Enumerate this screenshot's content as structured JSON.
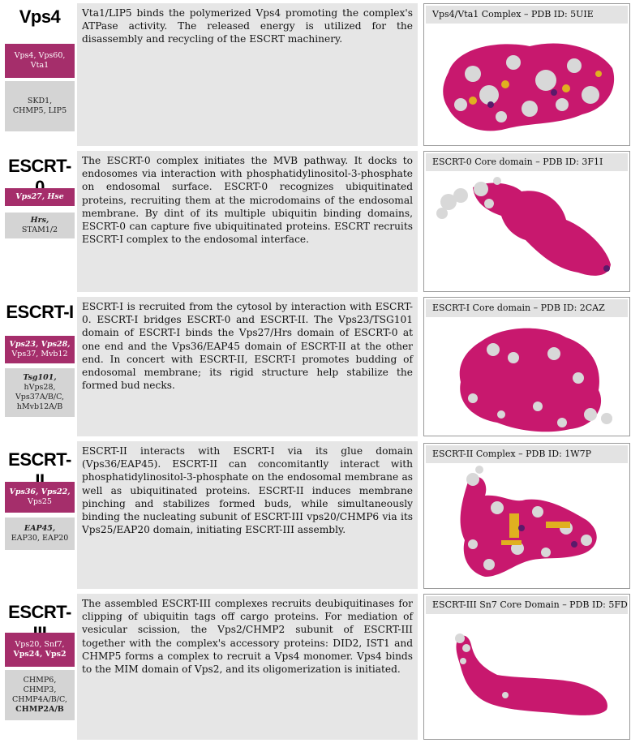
{
  "sections": [
    {
      "id": "vps4",
      "title": "Vps4",
      "yeast_lines": [
        "Vps4, Vps60,",
        "Vta1"
      ],
      "human_lines": [
        "SKD1,",
        "CHMP5, LIP5"
      ],
      "text": "Vta1/LIP5 binds the polymerized Vps4 promoting the complex's ATPase activity. The released energy is utilized for the disassembly and recycling of the ESCRT machinery.",
      "caption": "Vps4/Vta1 Complex – PDB ID: 5UIE"
    },
    {
      "id": "escrt0",
      "title": "ESCRT-0",
      "yeast_lines": [
        "Vps27, Hse"
      ],
      "human_lines": [
        "Hrs,",
        "STAM1/2"
      ],
      "text": "The ESCRT-0 complex initiates the MVB pathway. It docks to endosomes via interaction with phosphatidylinositol-3-phosphate on endosomal surface. ESCRT-0 recognizes ubiquitinated proteins, recruiting them at the microdomains of the endosomal membrane. By dint of its multiple ubiquitin binding domains, ESCRT-0 can capture five ubiquitinated proteins. ESCRT recruits ESCRT-I complex to the endosomal interface.",
      "caption": "ESCRT-0 Core domain – PDB ID: 3F1I"
    },
    {
      "id": "escrt1",
      "title": "ESCRT-I",
      "yeast_lines": [
        "Vps23, Vps28,",
        "Vps37, Mvb12"
      ],
      "human_lines": [
        "Tsg101,",
        "hVps28,",
        "Vps37A/B/C,",
        "hMvb12A/B"
      ],
      "text": "ESCRT-I is recruited from the cytosol by interaction with ESCRT-0. ESCRT-I bridges ESCRT-0 and ESCRT-II. The Vps23/TSG101 domain of ESCRT-I binds the Vps27/Hrs domain of ESCRT-0 at one end and the Vps36/EAP45 domain of ESCRT-II at the other end. In concert with ESCRT-II, ESCRT-I promotes budding of endosomal membrane; its rigid structure help stabilize the formed bud necks.",
      "caption": "ESCRT-I Core domain – PDB ID: 2CAZ"
    },
    {
      "id": "escrt2",
      "title": "ESCRT-II",
      "yeast_lines": [
        "Vps36, Vps22,",
        "Vps25"
      ],
      "human_lines": [
        "EAP45,",
        "EAP30, EAP20"
      ],
      "text": "ESCRT-II interacts with ESCRT-I via its glue domain (Vps36/EAP45). ESCRT-II can concomitantly interact with phosphatidylinositol-3-phosphate on the endosomal membrane as well as ubiquitinated proteins. ESCRT-II induces membrane pinching and stabilizes formed buds, while simultaneously binding the nucleating subunit of ESCRT-III vps20/CHMP6 via its Vps25/EAP20 domain, initiating ESCRT-III assembly.",
      "caption": "ESCRT-II Complex – PDB ID: 1W7P"
    },
    {
      "id": "escrt3",
      "title": "ESCRT-III",
      "yeast_lines": [
        "Vps20, Snf7,",
        "Vps24, Vps2"
      ],
      "human_lines": [
        "CHMP6,",
        "CHMP3,",
        "CHMP4A/B/C,",
        "CHMP2A/B"
      ],
      "text": "The assembled ESCRT-III complexes recruits deubiquitinases for clipping of ubiquitin tags off cargo proteins. For mediation of vesicular scission, the Vps2/CHMP2 subunit of ESCRT-III together with the complex's accessory proteins: DID2, IST1 and CHMP5 forms a complex to recruit a Vps4 monomer. Vps4 binds to the MIM domain of Vps2, and its oligomerization is initiated.",
      "caption": "ESCRT-III Sn7 Core Domain – PDB ID: 5FD9"
    }
  ],
  "colors": {
    "magenta": "#c8186e",
    "grey": "#d8d8d8",
    "yellow": "#e0b020",
    "purple": "#5a1a6a"
  }
}
